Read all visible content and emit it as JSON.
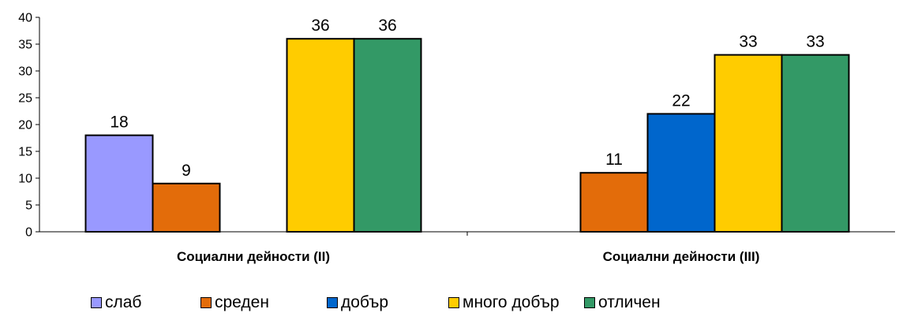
{
  "chart_data": {
    "type": "bar",
    "title": "",
    "xlabel": "",
    "ylabel": "",
    "ylim": [
      0,
      40
    ],
    "yticks": [
      0,
      5,
      10,
      15,
      20,
      25,
      30,
      35,
      40
    ],
    "grid": false,
    "legend_position": "bottom",
    "categories": [
      "Социални дейности (II)",
      "Социални дейности (III)"
    ],
    "series": [
      {
        "name": "слаб",
        "color": "#9999ff",
        "values": [
          18,
          null
        ]
      },
      {
        "name": "среден",
        "color": "#e36c0a",
        "values": [
          9,
          11
        ]
      },
      {
        "name": "добър",
        "color": "#0066cc",
        "values": [
          null,
          22
        ]
      },
      {
        "name": "много добър",
        "color": "#ffcc00",
        "values": [
          36,
          33
        ]
      },
      {
        "name": "отличен",
        "color": "#339966",
        "values": [
          36,
          33
        ]
      }
    ]
  }
}
